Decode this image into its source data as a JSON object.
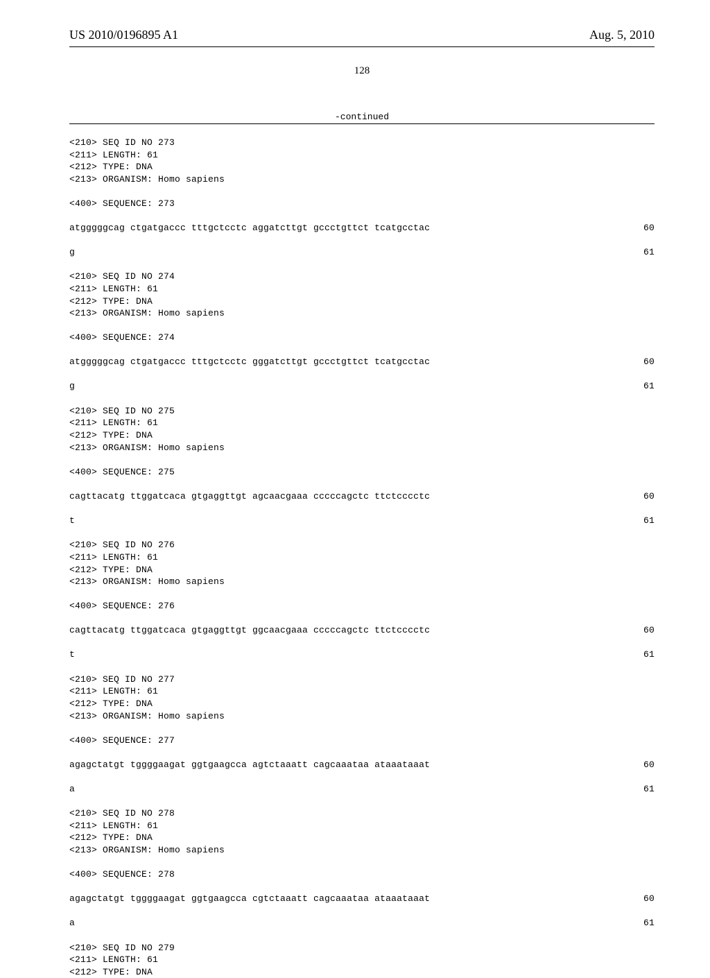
{
  "header": {
    "publication_number": "US 2010/0196895 A1",
    "publication_date": "Aug. 5, 2010"
  },
  "page_number": "128",
  "continued_label": "-continued",
  "sequences": [
    {
      "meta": [
        "<210> SEQ ID NO 273",
        "<211> LENGTH: 61",
        "<212> TYPE: DNA",
        "<213> ORGANISM: Homo sapiens"
      ],
      "sequence_label": "<400> SEQUENCE: 273",
      "rows": [
        {
          "seq": "atgggggcag ctgatgaccc tttgctcctc aggatcttgt gccctgttct tcatgcctac",
          "pos": "60"
        },
        {
          "seq": "g",
          "pos": "61"
        }
      ]
    },
    {
      "meta": [
        "<210> SEQ ID NO 274",
        "<211> LENGTH: 61",
        "<212> TYPE: DNA",
        "<213> ORGANISM: Homo sapiens"
      ],
      "sequence_label": "<400> SEQUENCE: 274",
      "rows": [
        {
          "seq": "atgggggcag ctgatgaccc tttgctcctc gggatcttgt gccctgttct tcatgcctac",
          "pos": "60"
        },
        {
          "seq": "g",
          "pos": "61"
        }
      ]
    },
    {
      "meta": [
        "<210> SEQ ID NO 275",
        "<211> LENGTH: 61",
        "<212> TYPE: DNA",
        "<213> ORGANISM: Homo sapiens"
      ],
      "sequence_label": "<400> SEQUENCE: 275",
      "rows": [
        {
          "seq": "cagttacatg ttggatcaca gtgaggttgt agcaacgaaa cccccagctc ttctcccctc",
          "pos": "60"
        },
        {
          "seq": "t",
          "pos": "61"
        }
      ]
    },
    {
      "meta": [
        "<210> SEQ ID NO 276",
        "<211> LENGTH: 61",
        "<212> TYPE: DNA",
        "<213> ORGANISM: Homo sapiens"
      ],
      "sequence_label": "<400> SEQUENCE: 276",
      "rows": [
        {
          "seq": "cagttacatg ttggatcaca gtgaggttgt ggcaacgaaa cccccagctc ttctcccctc",
          "pos": "60"
        },
        {
          "seq": "t",
          "pos": "61"
        }
      ]
    },
    {
      "meta": [
        "<210> SEQ ID NO 277",
        "<211> LENGTH: 61",
        "<212> TYPE: DNA",
        "<213> ORGANISM: Homo sapiens"
      ],
      "sequence_label": "<400> SEQUENCE: 277",
      "rows": [
        {
          "seq": "agagctatgt tggggaagat ggtgaagcca agtctaaatt cagcaaataa ataaataaat",
          "pos": "60"
        },
        {
          "seq": "a",
          "pos": "61"
        }
      ]
    },
    {
      "meta": [
        "<210> SEQ ID NO 278",
        "<211> LENGTH: 61",
        "<212> TYPE: DNA",
        "<213> ORGANISM: Homo sapiens"
      ],
      "sequence_label": "<400> SEQUENCE: 278",
      "rows": [
        {
          "seq": "agagctatgt tggggaagat ggtgaagcca cgtctaaatt cagcaaataa ataaataaat",
          "pos": "60"
        },
        {
          "seq": "a",
          "pos": "61"
        }
      ]
    },
    {
      "meta": [
        "<210> SEQ ID NO 279",
        "<211> LENGTH: 61",
        "<212> TYPE: DNA"
      ],
      "sequence_label": null,
      "rows": []
    }
  ]
}
